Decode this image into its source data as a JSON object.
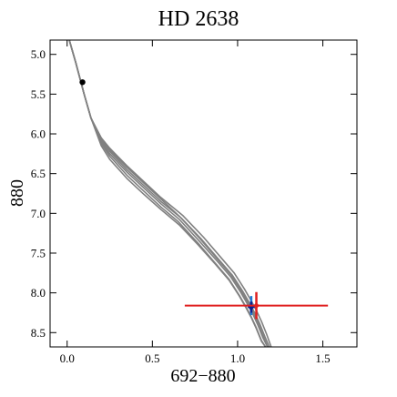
{
  "chart_data": {
    "type": "line",
    "title": "HD 2638",
    "xlabel": "692−880",
    "ylabel": "880",
    "xlim": [
      -0.1,
      1.7
    ],
    "ylim": [
      8.68,
      4.82
    ],
    "y_inverted": true,
    "grid": false,
    "x_ticks": [
      {
        "value": 0.0,
        "label": "0.0"
      },
      {
        "value": 0.5,
        "label": "0.5"
      },
      {
        "value": 1.0,
        "label": "1.0"
      },
      {
        "value": 1.5,
        "label": "1.5"
      }
    ],
    "y_ticks": [
      {
        "value": 5.0,
        "label": "5.0"
      },
      {
        "value": 5.5,
        "label": "5.5"
      },
      {
        "value": 6.0,
        "label": "6.0"
      },
      {
        "value": 6.5,
        "label": "6.5"
      },
      {
        "value": 7.0,
        "label": "7.0"
      },
      {
        "value": 7.5,
        "label": "7.5"
      },
      {
        "value": 8.0,
        "label": "8.0"
      },
      {
        "value": 8.5,
        "label": "8.5"
      }
    ],
    "isochrone_color": "#808080",
    "isochrones": [
      {
        "x": [
          0.01,
          0.05,
          0.1,
          0.14,
          0.2,
          0.25,
          0.35,
          0.45,
          0.55,
          0.68,
          0.8,
          0.9,
          0.98,
          1.04,
          1.08,
          1.11,
          1.14,
          1.17,
          1.2
        ],
        "y": [
          4.8,
          5.1,
          5.5,
          5.8,
          6.05,
          6.18,
          6.4,
          6.6,
          6.8,
          7.03,
          7.3,
          7.55,
          7.75,
          7.95,
          8.1,
          8.22,
          8.36,
          8.52,
          8.7
        ]
      },
      {
        "x": [
          0.01,
          0.05,
          0.1,
          0.14,
          0.2,
          0.25,
          0.35,
          0.45,
          0.55,
          0.67,
          0.79,
          0.89,
          0.97,
          1.03,
          1.07,
          1.1,
          1.13,
          1.16,
          1.19
        ],
        "y": [
          4.8,
          5.1,
          5.5,
          5.8,
          6.08,
          6.22,
          6.45,
          6.65,
          6.85,
          7.06,
          7.33,
          7.58,
          7.78,
          7.98,
          8.13,
          8.25,
          8.39,
          8.55,
          8.7
        ]
      },
      {
        "x": [
          0.01,
          0.05,
          0.1,
          0.14,
          0.2,
          0.25,
          0.35,
          0.45,
          0.55,
          0.66,
          0.78,
          0.88,
          0.96,
          1.02,
          1.06,
          1.09,
          1.12,
          1.15,
          1.18
        ],
        "y": [
          4.8,
          5.1,
          5.5,
          5.8,
          6.1,
          6.25,
          6.48,
          6.68,
          6.88,
          7.08,
          7.36,
          7.6,
          7.8,
          8.0,
          8.15,
          8.27,
          8.41,
          8.57,
          8.7
        ]
      },
      {
        "x": [
          0.01,
          0.05,
          0.1,
          0.14,
          0.2,
          0.25,
          0.35,
          0.45,
          0.55,
          0.65,
          0.77,
          0.87,
          0.95,
          1.01,
          1.05,
          1.08,
          1.11,
          1.14,
          1.17
        ],
        "y": [
          4.8,
          5.1,
          5.5,
          5.8,
          6.12,
          6.28,
          6.52,
          6.72,
          6.92,
          7.1,
          7.38,
          7.63,
          7.83,
          8.03,
          8.18,
          8.3,
          8.44,
          8.6,
          8.7
        ]
      },
      {
        "x": [
          0.01,
          0.05,
          0.1,
          0.14,
          0.2,
          0.25,
          0.35,
          0.45,
          0.55,
          0.66,
          0.77,
          0.87,
          0.95,
          1.01,
          1.05,
          1.08,
          1.11,
          1.14,
          1.17
        ],
        "y": [
          4.8,
          5.1,
          5.5,
          5.8,
          6.15,
          6.32,
          6.56,
          6.76,
          6.95,
          7.15,
          7.4,
          7.64,
          7.84,
          8.04,
          8.19,
          8.31,
          8.45,
          8.61,
          8.7
        ]
      },
      {
        "x": [
          0.01,
          0.05,
          0.1,
          0.14,
          0.2,
          0.25,
          0.35,
          0.45,
          0.55,
          0.66,
          0.78,
          0.88,
          0.96,
          1.02,
          1.06,
          1.09,
          1.12,
          1.15,
          1.18
        ],
        "y": [
          4.8,
          5.1,
          5.5,
          5.8,
          6.07,
          6.2,
          6.42,
          6.62,
          6.82,
          7.04,
          7.32,
          7.57,
          7.77,
          7.97,
          8.12,
          8.24,
          8.38,
          8.54,
          8.7
        ]
      }
    ],
    "black_point": {
      "x": 0.09,
      "y": 5.35,
      "color": "#000000"
    },
    "observations": [
      {
        "name": "blue",
        "color": "#1f77d4",
        "x": 1.08,
        "y": 8.16,
        "x_err": 0.04,
        "y_err": 0.12
      },
      {
        "name": "darkblue",
        "color": "#0a1f8f",
        "x": 1.08,
        "y": 8.18,
        "x_err": 0.02,
        "y_err": 0.07
      },
      {
        "name": "red",
        "color": "#e02020",
        "x": 1.11,
        "y": 8.16,
        "x_err": 0.42,
        "y_err": 0.17
      }
    ]
  }
}
